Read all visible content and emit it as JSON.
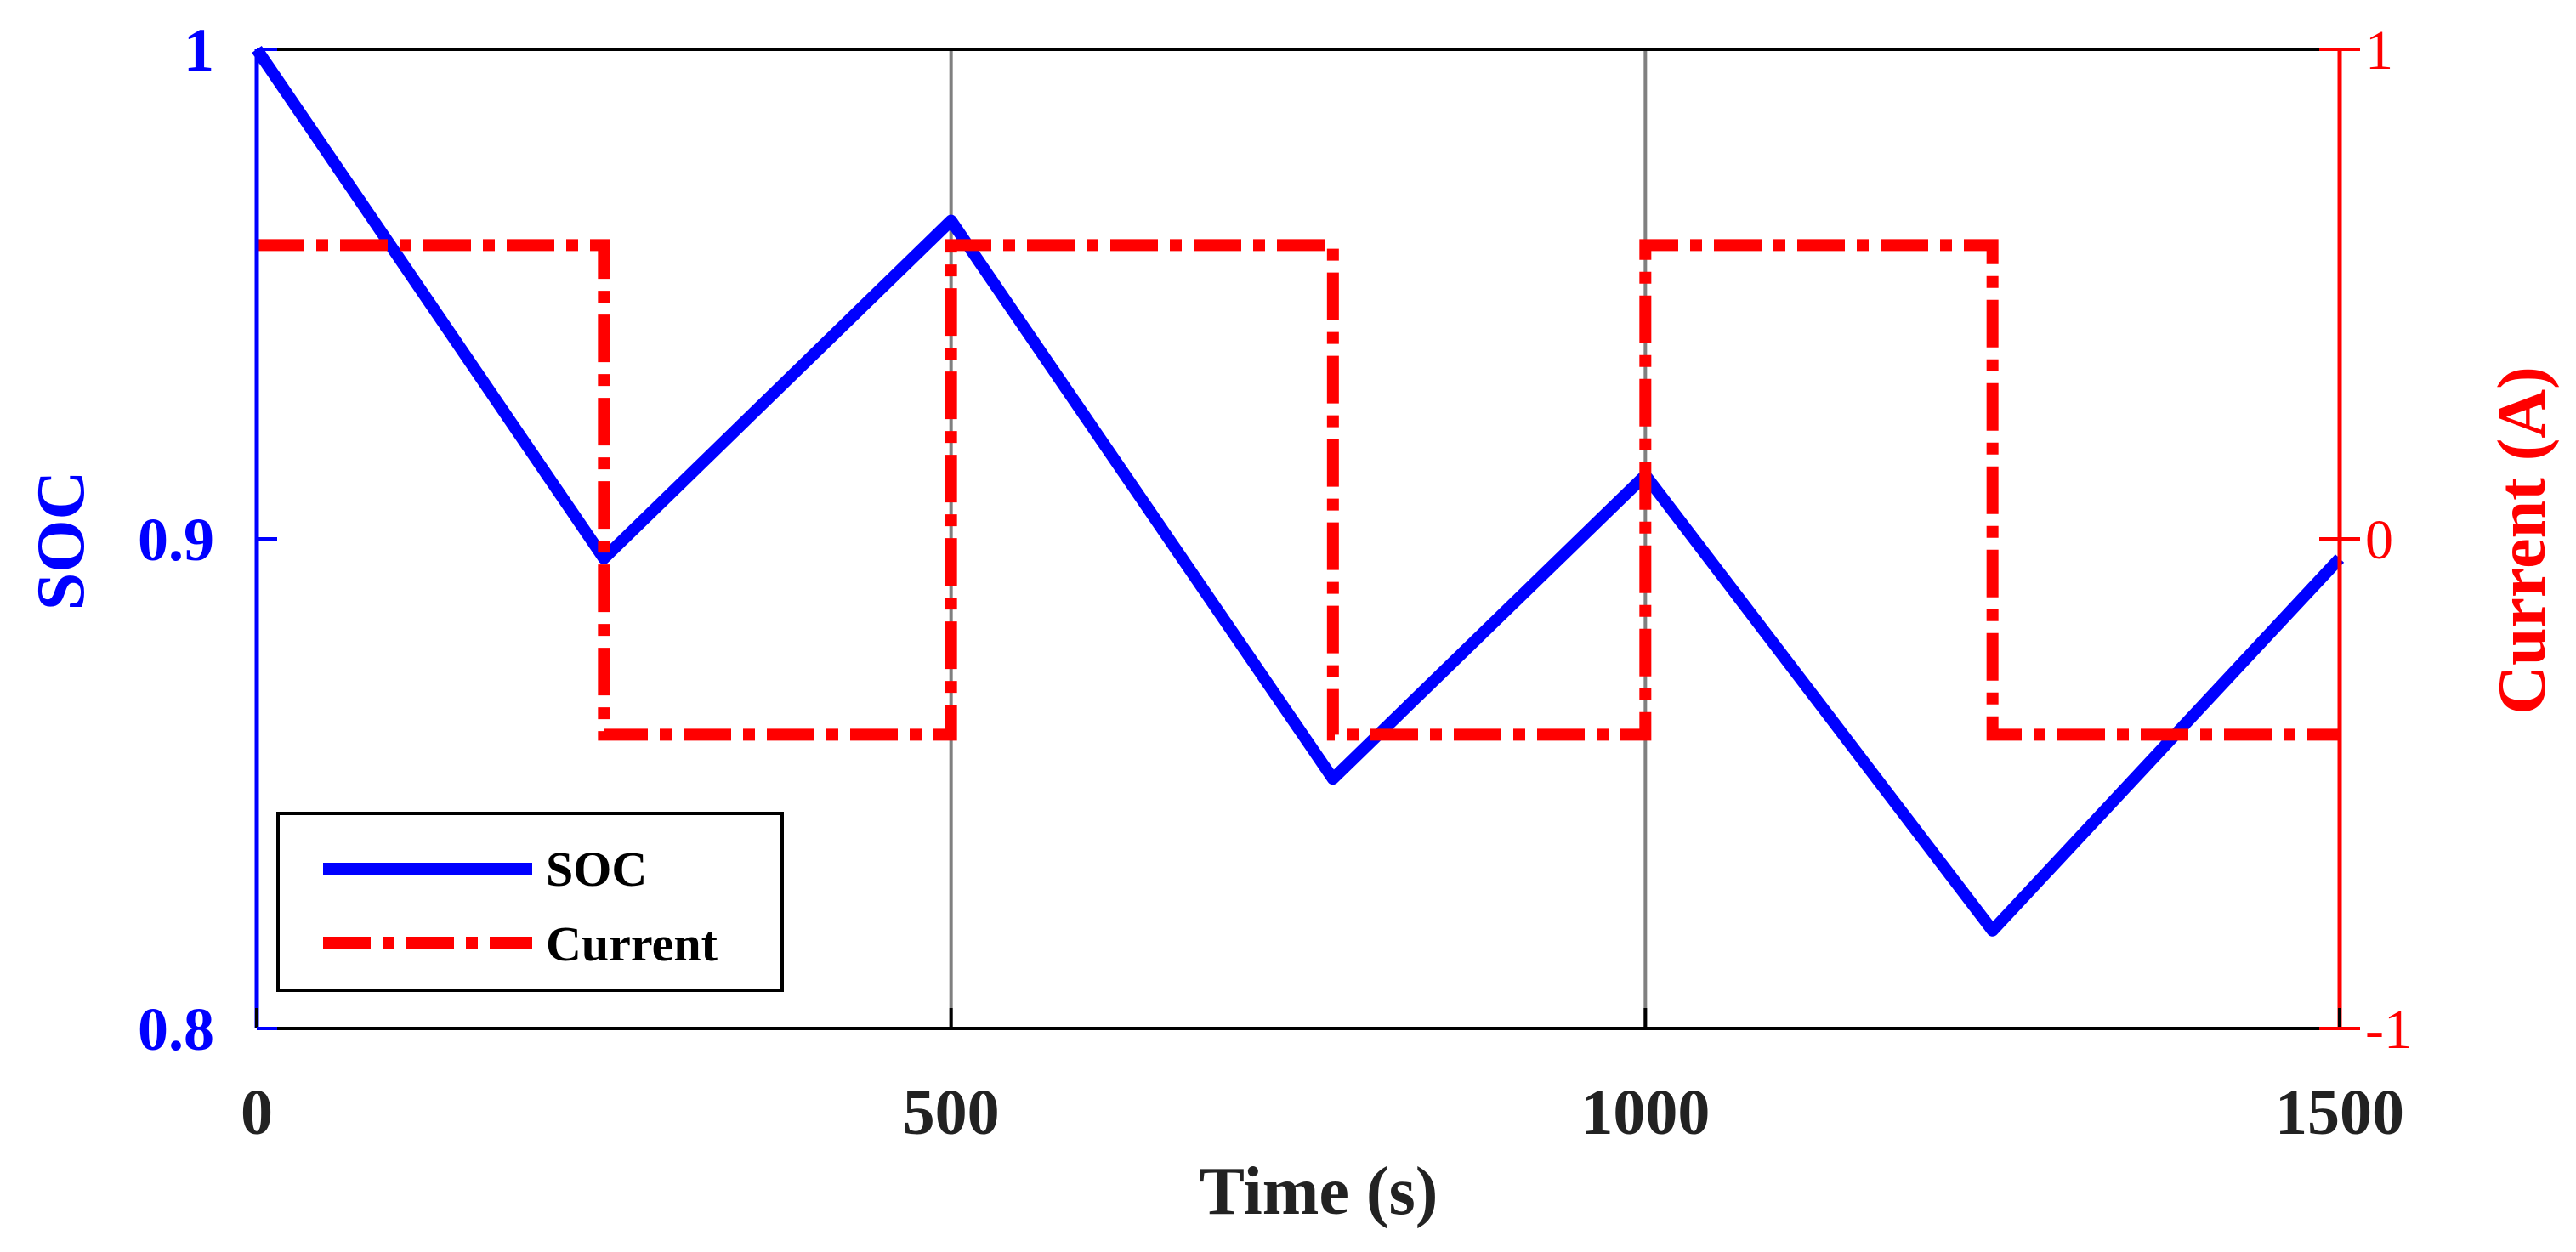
{
  "chart_data": {
    "type": "line",
    "title": "",
    "xlabel": "Time (s)",
    "ylabel": "SOC",
    "y2label": "Current (A)",
    "xlim": [
      0,
      1500
    ],
    "ylim": [
      0.8,
      1
    ],
    "y2lim": [
      -1,
      1
    ],
    "grid": "x-only",
    "legend_position": "bottom-left",
    "x_ticks": [
      "0",
      "500",
      "1000",
      "1500"
    ],
    "y_ticks": [
      "0.8",
      "0.9",
      "1"
    ],
    "y2_ticks": [
      "-1",
      "0",
      "1"
    ],
    "colors": {
      "soc": "#0000ff",
      "current": "#ff0000",
      "axes": "#000000",
      "grid": "#808080"
    },
    "series": [
      {
        "name": "SOC",
        "axis": "left",
        "style": "solid",
        "x": [
          0,
          250,
          500,
          775,
          1000,
          1250,
          1500
        ],
        "y": [
          1.0,
          0.896,
          0.965,
          0.851,
          0.913,
          0.82,
          0.896
        ]
      },
      {
        "name": "Current",
        "axis": "right",
        "style": "dash-dot",
        "x": [
          0,
          250,
          250,
          500,
          500,
          775,
          775,
          1000,
          1000,
          1250,
          1250,
          1500
        ],
        "y": [
          0.6,
          0.6,
          -0.4,
          -0.4,
          0.6,
          0.6,
          -0.4,
          -0.4,
          0.6,
          0.6,
          -0.4,
          -0.4
        ]
      }
    ]
  }
}
